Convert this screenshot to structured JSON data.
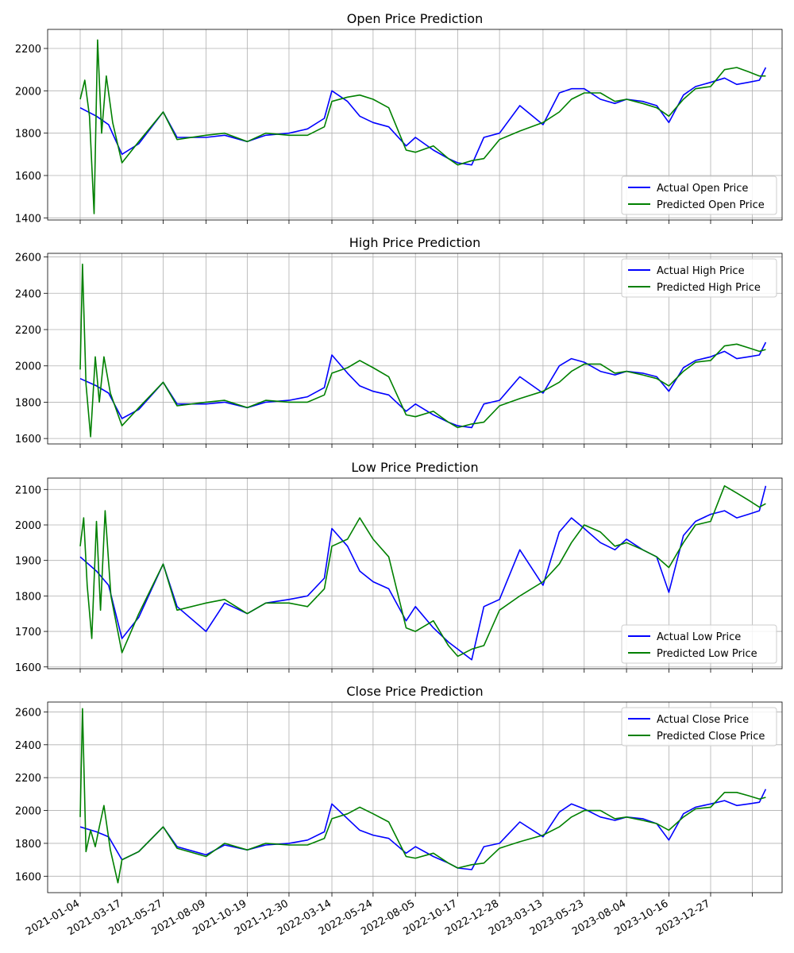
{
  "x_tick_labels": [
    "2021-01-04",
    "2021-03-17",
    "2021-05-27",
    "2021-08-09",
    "2021-10-19",
    "2021-12-30",
    "2022-03-14",
    "2022-05-24",
    "2022-08-05",
    "2022-10-17",
    "2022-12-28",
    "2023-03-13",
    "2023-05-23",
    "2023-08-04",
    "2023-10-16",
    "2023-12-27"
  ],
  "colors": {
    "actual": "#0000ff",
    "predicted": "#008000",
    "grid": "#b0b0b0"
  },
  "chart_data": [
    {
      "type": "line",
      "title": "Open Price Prediction",
      "ylim": [
        1390,
        2290
      ],
      "yticks": [
        1400,
        1600,
        1800,
        2000,
        2200
      ],
      "legend": "lower-right",
      "grid": true,
      "series": [
        {
          "name": "Actual Open Price",
          "role": "actual",
          "x": [
            "2021-01-04",
            "2021-02-01",
            "2021-02-22",
            "2021-03-17",
            "2021-04-15",
            "2021-05-27",
            "2021-06-20",
            "2021-08-09",
            "2021-09-10",
            "2021-10-19",
            "2021-11-20",
            "2021-12-30",
            "2022-01-31",
            "2022-03-01",
            "2022-03-14",
            "2022-04-10",
            "2022-05-01",
            "2022-05-24",
            "2022-06-20",
            "2022-07-20",
            "2022-08-05",
            "2022-09-05",
            "2022-10-01",
            "2022-10-17",
            "2022-11-10",
            "2022-12-01",
            "2022-12-28",
            "2023-02-01",
            "2023-03-13",
            "2023-04-10",
            "2023-05-01",
            "2023-05-23",
            "2023-06-20",
            "2023-07-15",
            "2023-08-04",
            "2023-09-01",
            "2023-09-25",
            "2023-10-16",
            "2023-11-10",
            "2023-12-01",
            "2023-12-27",
            "2024-01-20",
            "2024-02-10",
            "2024-03-01",
            "2024-03-20",
            "2024-03-31"
          ],
          "y": [
            1920,
            1880,
            1840,
            1700,
            1750,
            1900,
            1780,
            1780,
            1790,
            1760,
            1790,
            1800,
            1820,
            1870,
            2000,
            1950,
            1880,
            1850,
            1830,
            1740,
            1780,
            1720,
            1680,
            1660,
            1650,
            1780,
            1800,
            1930,
            1840,
            1990,
            2010,
            2010,
            1960,
            1940,
            1960,
            1950,
            1930,
            1850,
            1980,
            2020,
            2040,
            2060,
            2030,
            2040,
            2050,
            2110
          ]
        },
        {
          "name": "Predicted Open Price",
          "role": "predicted",
          "x": [
            "2021-01-04",
            "2021-01-12",
            "2021-01-20",
            "2021-01-28",
            "2021-02-03",
            "2021-02-10",
            "2021-02-18",
            "2021-03-01",
            "2021-03-17",
            "2021-04-15",
            "2021-05-27",
            "2021-06-20",
            "2021-08-09",
            "2021-09-10",
            "2021-10-19",
            "2021-11-20",
            "2021-12-30",
            "2022-01-31",
            "2022-03-01",
            "2022-03-14",
            "2022-04-10",
            "2022-05-01",
            "2022-05-24",
            "2022-06-20",
            "2022-07-20",
            "2022-08-05",
            "2022-09-05",
            "2022-10-01",
            "2022-10-17",
            "2022-11-10",
            "2022-12-01",
            "2022-12-28",
            "2023-02-01",
            "2023-03-13",
            "2023-04-10",
            "2023-05-01",
            "2023-05-23",
            "2023-06-20",
            "2023-07-15",
            "2023-08-04",
            "2023-09-01",
            "2023-09-25",
            "2023-10-16",
            "2023-11-10",
            "2023-12-01",
            "2023-12-27",
            "2024-01-20",
            "2024-02-10",
            "2024-03-01",
            "2024-03-20",
            "2024-03-31"
          ],
          "y": [
            1960,
            2050,
            1880,
            1420,
            2240,
            1800,
            2070,
            1850,
            1660,
            1760,
            1900,
            1770,
            1790,
            1800,
            1760,
            1800,
            1790,
            1790,
            1830,
            1950,
            1970,
            1980,
            1960,
            1920,
            1720,
            1710,
            1740,
            1680,
            1650,
            1670,
            1680,
            1770,
            1810,
            1850,
            1900,
            1960,
            1990,
            1990,
            1950,
            1960,
            1940,
            1920,
            1880,
            1960,
            2010,
            2020,
            2100,
            2110,
            2090,
            2070,
            2070
          ]
        }
      ]
    },
    {
      "type": "line",
      "title": "High Price Prediction",
      "ylim": [
        1570,
        2620
      ],
      "yticks": [
        1600,
        1800,
        2000,
        2200,
        2400,
        2600
      ],
      "legend": "upper-right",
      "grid": true,
      "series": [
        {
          "name": "Actual High Price",
          "role": "actual",
          "x": [
            "2021-01-04",
            "2021-02-01",
            "2021-02-22",
            "2021-03-17",
            "2021-04-15",
            "2021-05-27",
            "2021-06-20",
            "2021-08-09",
            "2021-09-10",
            "2021-10-19",
            "2021-11-20",
            "2021-12-30",
            "2022-01-31",
            "2022-03-01",
            "2022-03-14",
            "2022-04-10",
            "2022-05-01",
            "2022-05-24",
            "2022-06-20",
            "2022-07-20",
            "2022-08-05",
            "2022-09-05",
            "2022-10-01",
            "2022-10-17",
            "2022-11-10",
            "2022-12-01",
            "2022-12-28",
            "2023-02-01",
            "2023-03-13",
            "2023-04-10",
            "2023-05-01",
            "2023-05-23",
            "2023-06-20",
            "2023-07-15",
            "2023-08-04",
            "2023-09-01",
            "2023-09-25",
            "2023-10-16",
            "2023-11-10",
            "2023-12-01",
            "2023-12-27",
            "2024-01-20",
            "2024-02-10",
            "2024-03-01",
            "2024-03-20",
            "2024-03-31"
          ],
          "y": [
            1930,
            1890,
            1850,
            1710,
            1760,
            1910,
            1790,
            1790,
            1800,
            1770,
            1800,
            1810,
            1830,
            1880,
            2060,
            1960,
            1890,
            1860,
            1840,
            1750,
            1790,
            1730,
            1690,
            1670,
            1660,
            1790,
            1810,
            1940,
            1850,
            2000,
            2040,
            2020,
            1970,
            1950,
            1970,
            1960,
            1940,
            1860,
            1990,
            2030,
            2050,
            2080,
            2040,
            2050,
            2060,
            2130
          ]
        },
        {
          "name": "Predicted High Price",
          "role": "predicted",
          "x": [
            "2021-01-04",
            "2021-01-08",
            "2021-01-14",
            "2021-01-22",
            "2021-01-30",
            "2021-02-06",
            "2021-02-14",
            "2021-02-25",
            "2021-03-17",
            "2021-04-15",
            "2021-05-27",
            "2021-06-20",
            "2021-08-09",
            "2021-09-10",
            "2021-10-19",
            "2021-11-20",
            "2021-12-30",
            "2022-01-31",
            "2022-03-01",
            "2022-03-14",
            "2022-04-10",
            "2022-05-01",
            "2022-05-24",
            "2022-06-20",
            "2022-07-20",
            "2022-08-05",
            "2022-09-05",
            "2022-10-01",
            "2022-10-17",
            "2022-11-10",
            "2022-12-01",
            "2022-12-28",
            "2023-02-01",
            "2023-03-13",
            "2023-04-10",
            "2023-05-01",
            "2023-05-23",
            "2023-06-20",
            "2023-07-15",
            "2023-08-04",
            "2023-09-01",
            "2023-09-25",
            "2023-10-16",
            "2023-11-10",
            "2023-12-01",
            "2023-12-27",
            "2024-01-20",
            "2024-02-10",
            "2024-03-01",
            "2024-03-20",
            "2024-03-31"
          ],
          "y": [
            1980,
            2560,
            1900,
            1610,
            2050,
            1800,
            2050,
            1850,
            1670,
            1770,
            1910,
            1780,
            1800,
            1810,
            1770,
            1810,
            1800,
            1800,
            1840,
            1960,
            1990,
            2030,
            1990,
            1940,
            1730,
            1720,
            1750,
            1690,
            1660,
            1680,
            1690,
            1780,
            1820,
            1860,
            1910,
            1970,
            2010,
            2010,
            1960,
            1970,
            1950,
            1930,
            1890,
            1970,
            2020,
            2030,
            2110,
            2120,
            2100,
            2080,
            2090
          ]
        }
      ]
    },
    {
      "type": "line",
      "title": "Low Price Prediction",
      "ylim": [
        1595,
        2132
      ],
      "yticks": [
        1600,
        1700,
        1800,
        1900,
        2000,
        2100
      ],
      "legend": "lower-right",
      "grid": true,
      "series": [
        {
          "name": "Actual Low Price",
          "role": "actual",
          "x": [
            "2021-01-04",
            "2021-02-01",
            "2021-02-22",
            "2021-03-17",
            "2021-04-15",
            "2021-05-27",
            "2021-06-20",
            "2021-08-09",
            "2021-09-10",
            "2021-10-19",
            "2021-11-20",
            "2021-12-30",
            "2022-01-31",
            "2022-03-01",
            "2022-03-14",
            "2022-04-10",
            "2022-05-01",
            "2022-05-24",
            "2022-06-20",
            "2022-07-20",
            "2022-08-05",
            "2022-09-05",
            "2022-10-01",
            "2022-10-17",
            "2022-11-10",
            "2022-12-01",
            "2022-12-28",
            "2023-02-01",
            "2023-03-13",
            "2023-04-10",
            "2023-05-01",
            "2023-05-23",
            "2023-06-20",
            "2023-07-15",
            "2023-08-04",
            "2023-09-01",
            "2023-09-25",
            "2023-10-16",
            "2023-11-10",
            "2023-12-01",
            "2023-12-27",
            "2024-01-20",
            "2024-02-10",
            "2024-03-01",
            "2024-03-20",
            "2024-03-31"
          ],
          "y": [
            1910,
            1870,
            1830,
            1680,
            1740,
            1890,
            1770,
            1700,
            1780,
            1750,
            1780,
            1790,
            1800,
            1850,
            1990,
            1940,
            1870,
            1840,
            1820,
            1730,
            1770,
            1710,
            1670,
            1650,
            1620,
            1770,
            1790,
            1930,
            1830,
            1980,
            2020,
            1990,
            1950,
            1930,
            1960,
            1930,
            1910,
            1810,
            1970,
            2010,
            2030,
            2040,
            2020,
            2030,
            2040,
            2110
          ]
        },
        {
          "name": "Predicted Low Price",
          "role": "predicted",
          "x": [
            "2021-01-04",
            "2021-01-10",
            "2021-01-16",
            "2021-01-24",
            "2021-02-01",
            "2021-02-08",
            "2021-02-16",
            "2021-02-26",
            "2021-03-17",
            "2021-04-15",
            "2021-05-27",
            "2021-06-20",
            "2021-08-09",
            "2021-09-10",
            "2021-10-19",
            "2021-11-20",
            "2021-12-30",
            "2022-01-31",
            "2022-03-01",
            "2022-03-14",
            "2022-04-10",
            "2022-05-01",
            "2022-05-24",
            "2022-06-20",
            "2022-07-20",
            "2022-08-05",
            "2022-09-05",
            "2022-10-01",
            "2022-10-17",
            "2022-11-10",
            "2022-12-01",
            "2022-12-28",
            "2023-02-01",
            "2023-03-13",
            "2023-04-10",
            "2023-05-01",
            "2023-05-23",
            "2023-06-20",
            "2023-07-15",
            "2023-08-04",
            "2023-09-01",
            "2023-09-25",
            "2023-10-16",
            "2023-11-10",
            "2023-12-01",
            "2023-12-27",
            "2024-01-20",
            "2024-02-10",
            "2024-03-01",
            "2024-03-20",
            "2024-03-31"
          ],
          "y": [
            1940,
            2020,
            1830,
            1680,
            2010,
            1760,
            2040,
            1800,
            1640,
            1750,
            1890,
            1760,
            1780,
            1790,
            1750,
            1780,
            1780,
            1770,
            1820,
            1940,
            1960,
            2020,
            1960,
            1910,
            1710,
            1700,
            1730,
            1660,
            1630,
            1650,
            1660,
            1760,
            1800,
            1840,
            1890,
            1950,
            2000,
            1980,
            1940,
            1950,
            1930,
            1910,
            1880,
            1950,
            2000,
            2010,
            2110,
            2090,
            2070,
            2050,
            2060
          ]
        }
      ]
    },
    {
      "type": "line",
      "title": "Close Price Prediction",
      "ylim": [
        1500,
        2660
      ],
      "yticks": [
        1600,
        1800,
        2000,
        2200,
        2400,
        2600
      ],
      "legend": "upper-right",
      "grid": true,
      "series": [
        {
          "name": "Actual Close Price",
          "role": "actual",
          "x": [
            "2021-01-04",
            "2021-02-01",
            "2021-02-22",
            "2021-03-17",
            "2021-04-15",
            "2021-05-27",
            "2021-06-20",
            "2021-08-09",
            "2021-09-10",
            "2021-10-19",
            "2021-11-20",
            "2021-12-30",
            "2022-01-31",
            "2022-03-01",
            "2022-03-14",
            "2022-04-10",
            "2022-05-01",
            "2022-05-24",
            "2022-06-20",
            "2022-07-20",
            "2022-08-05",
            "2022-09-05",
            "2022-10-01",
            "2022-10-17",
            "2022-11-10",
            "2022-12-01",
            "2022-12-28",
            "2023-02-01",
            "2023-03-13",
            "2023-04-10",
            "2023-05-01",
            "2023-05-23",
            "2023-06-20",
            "2023-07-15",
            "2023-08-04",
            "2023-09-01",
            "2023-09-25",
            "2023-10-16",
            "2023-11-10",
            "2023-12-01",
            "2023-12-27",
            "2024-01-20",
            "2024-02-10",
            "2024-03-01",
            "2024-03-20",
            "2024-03-31"
          ],
          "y": [
            1900,
            1870,
            1840,
            1700,
            1750,
            1900,
            1780,
            1730,
            1790,
            1760,
            1790,
            1800,
            1820,
            1870,
            2040,
            1950,
            1880,
            1850,
            1830,
            1740,
            1780,
            1720,
            1680,
            1650,
            1640,
            1780,
            1800,
            1930,
            1840,
            1990,
            2040,
            2010,
            1960,
            1940,
            1960,
            1950,
            1920,
            1820,
            1980,
            2020,
            2040,
            2060,
            2030,
            2040,
            2050,
            2130
          ]
        },
        {
          "name": "Predicted Close Price",
          "role": "predicted",
          "x": [
            "2021-01-04",
            "2021-01-08",
            "2021-01-14",
            "2021-01-22",
            "2021-01-30",
            "2021-02-06",
            "2021-02-14",
            "2021-02-25",
            "2021-03-10",
            "2021-03-17",
            "2021-04-15",
            "2021-05-27",
            "2021-06-20",
            "2021-08-09",
            "2021-09-10",
            "2021-10-19",
            "2021-11-20",
            "2021-12-30",
            "2022-01-31",
            "2022-03-01",
            "2022-03-14",
            "2022-04-10",
            "2022-05-01",
            "2022-05-24",
            "2022-06-20",
            "2022-07-20",
            "2022-08-05",
            "2022-09-05",
            "2022-10-01",
            "2022-10-17",
            "2022-11-10",
            "2022-12-01",
            "2022-12-28",
            "2023-02-01",
            "2023-03-13",
            "2023-04-10",
            "2023-05-01",
            "2023-05-23",
            "2023-06-20",
            "2023-07-15",
            "2023-08-04",
            "2023-09-01",
            "2023-09-25",
            "2023-10-16",
            "2023-11-10",
            "2023-12-01",
            "2023-12-27",
            "2024-01-20",
            "2024-02-10",
            "2024-03-01",
            "2024-03-20",
            "2024-03-31"
          ],
          "y": [
            1960,
            2620,
            1750,
            1880,
            1780,
            1900,
            2030,
            1760,
            1560,
            1700,
            1750,
            1900,
            1770,
            1720,
            1800,
            1760,
            1800,
            1790,
            1790,
            1830,
            1950,
            1980,
            2020,
            1980,
            1930,
            1720,
            1710,
            1740,
            1680,
            1650,
            1670,
            1680,
            1770,
            1810,
            1850,
            1900,
            1960,
            2000,
            2000,
            1950,
            1960,
            1940,
            1920,
            1880,
            1960,
            2010,
            2020,
            2110,
            2110,
            2090,
            2070,
            2080
          ]
        }
      ]
    }
  ]
}
